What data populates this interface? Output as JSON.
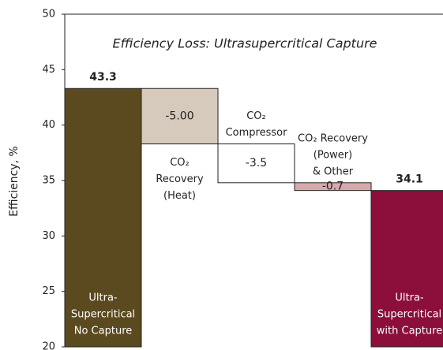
{
  "chart_data": {
    "type": "waterfall",
    "title": "Efficiency Loss: Ultrasupercritical Capture",
    "y_label": "Efficiency, %",
    "categories": [
      [
        "Ultra-",
        "Supercritical",
        "No Capture"
      ],
      [
        "CO₂",
        "Recovery",
        "(Heat)"
      ],
      [
        "CO₂",
        "Compressor"
      ],
      [
        "CO₂ Recovery",
        "(Power)",
        "& Other"
      ],
      [
        "Ultra-",
        "Supercritical",
        "with Capture"
      ]
    ],
    "values": [
      43.3,
      -5,
      -3.5,
      -0.7,
      34.1
    ],
    "value_labels": [
      "43.3",
      "-5.00",
      "-3.5",
      "-0.7",
      "34.1"
    ],
    "colors": [
      "#5b4a1f",
      "#d5cabb",
      "#ffffff",
      "#d9a8ad",
      "#8b0e3b"
    ],
    "ylim": [
      20,
      50
    ],
    "yticks": [
      20,
      25,
      30,
      35,
      40,
      45,
      50
    ]
  }
}
